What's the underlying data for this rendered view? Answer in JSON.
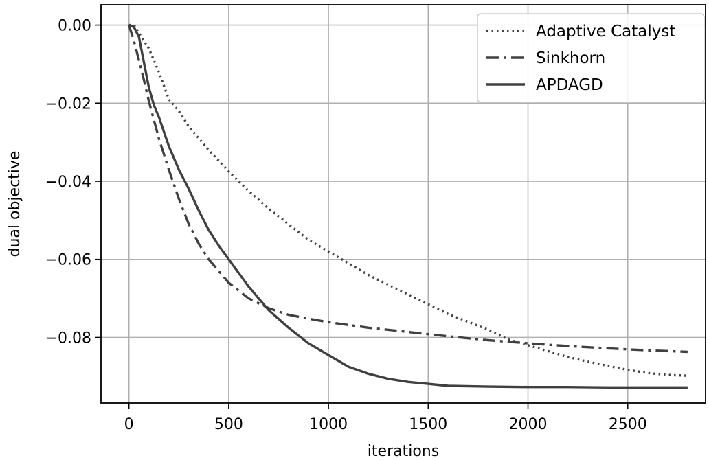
{
  "chart_data": {
    "type": "line",
    "title": "",
    "xlabel": "iterations",
    "ylabel": "dual objective",
    "xlim": [
      -140,
      2890
    ],
    "ylim": [
      -0.0968,
      0.0052
    ],
    "xticks": [
      0,
      500,
      1000,
      1500,
      2000,
      2500
    ],
    "xtick_labels": [
      "0",
      "500",
      "1000",
      "1500",
      "2000",
      "2500"
    ],
    "yticks": [
      0.0,
      -0.02,
      -0.04,
      -0.06,
      -0.08
    ],
    "ytick_labels": [
      "0.00",
      "−0.02",
      "−0.04",
      "−0.06",
      "−0.08"
    ],
    "grid": true,
    "legend_position": "top-right",
    "series": [
      {
        "name": "Adaptive Catalyst",
        "style": "dotted",
        "color": "#404040",
        "x": [
          0,
          25,
          50,
          100,
          150,
          200,
          250,
          300,
          400,
          500,
          600,
          700,
          800,
          900,
          1000,
          1100,
          1200,
          1300,
          1400,
          1500,
          1600,
          1700,
          1800,
          1900,
          2000,
          2100,
          2200,
          2300,
          2400,
          2500,
          2600,
          2700,
          2800
        ],
        "y": [
          0.0,
          0.0,
          -0.002,
          -0.006,
          -0.012,
          -0.019,
          -0.022,
          -0.026,
          -0.032,
          -0.0375,
          -0.0425,
          -0.047,
          -0.051,
          -0.055,
          -0.058,
          -0.061,
          -0.064,
          -0.0665,
          -0.069,
          -0.0715,
          -0.074,
          -0.076,
          -0.078,
          -0.0805,
          -0.082,
          -0.0835,
          -0.085,
          -0.0862,
          -0.0873,
          -0.0883,
          -0.0891,
          -0.0896,
          -0.0898
        ]
      },
      {
        "name": "Sinkhorn",
        "style": "dashdot",
        "color": "#404040",
        "x": [
          0,
          25,
          50,
          75,
          100,
          150,
          200,
          250,
          300,
          350,
          400,
          450,
          500,
          600,
          700,
          800,
          900,
          1000,
          1200,
          1400,
          1600,
          1800,
          2000,
          2200,
          2400,
          2600,
          2800
        ],
        "y": [
          0.0,
          -0.004,
          -0.009,
          -0.014,
          -0.0195,
          -0.029,
          -0.037,
          -0.0445,
          -0.051,
          -0.056,
          -0.06,
          -0.063,
          -0.066,
          -0.07,
          -0.0725,
          -0.0742,
          -0.0752,
          -0.0761,
          -0.0775,
          -0.0786,
          -0.0797,
          -0.0807,
          -0.0815,
          -0.0822,
          -0.0828,
          -0.0833,
          -0.0837
        ]
      },
      {
        "name": "APDAGD",
        "style": "solid",
        "color": "#404040",
        "x": [
          0,
          25,
          50,
          75,
          100,
          125,
          150,
          200,
          250,
          300,
          350,
          400,
          450,
          500,
          550,
          600,
          700,
          800,
          900,
          1000,
          1100,
          1200,
          1300,
          1400,
          1500,
          1600,
          1800,
          2000,
          2200,
          2400,
          2600,
          2800
        ],
        "y": [
          0.0,
          -0.0005,
          -0.003,
          -0.0095,
          -0.016,
          -0.0205,
          -0.0235,
          -0.031,
          -0.037,
          -0.042,
          -0.0475,
          -0.0525,
          -0.0565,
          -0.06,
          -0.0635,
          -0.067,
          -0.073,
          -0.0775,
          -0.0815,
          -0.0845,
          -0.0875,
          -0.0893,
          -0.0906,
          -0.0914,
          -0.0919,
          -0.0924,
          -0.0926,
          -0.0927,
          -0.0927,
          -0.0928,
          -0.0928,
          -0.0928
        ]
      }
    ]
  }
}
